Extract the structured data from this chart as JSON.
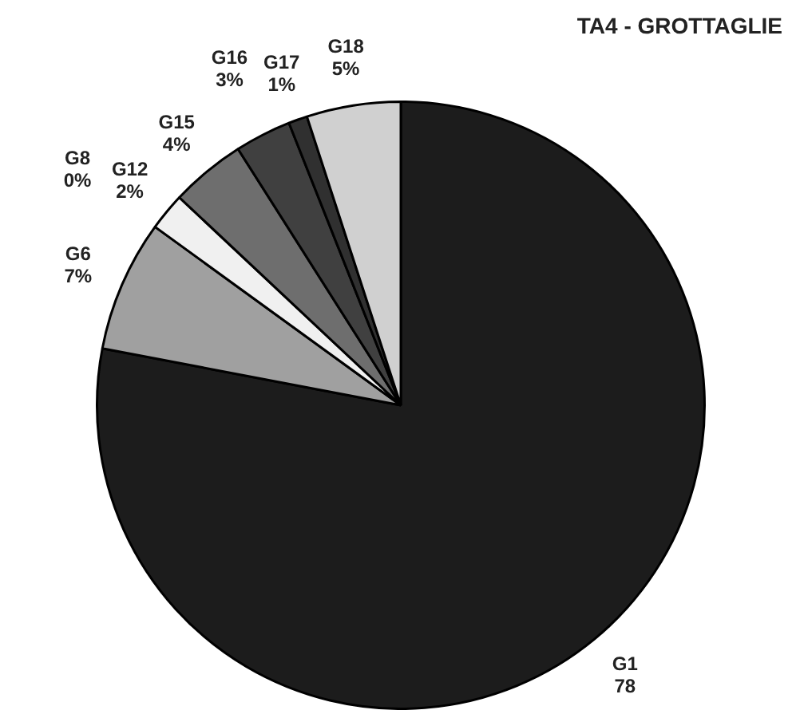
{
  "chart_data": {
    "type": "pie",
    "title": "TA4 - GROTTAGLIE",
    "categories": [
      "G1",
      "G6",
      "G8",
      "G12",
      "G15",
      "G16",
      "G17",
      "G18"
    ],
    "values": [
      78,
      7,
      0,
      2,
      4,
      3,
      1,
      5
    ],
    "value_labels": [
      "78",
      "7%",
      "0%",
      "2%",
      "4%",
      "3%",
      "1%",
      "5%"
    ],
    "colors": [
      "#1c1c1c",
      "#a0a0a0",
      "#ffffff",
      "#f0f0f0",
      "#6e6e6e",
      "#404040",
      "#303030",
      "#d0d0d0"
    ]
  }
}
